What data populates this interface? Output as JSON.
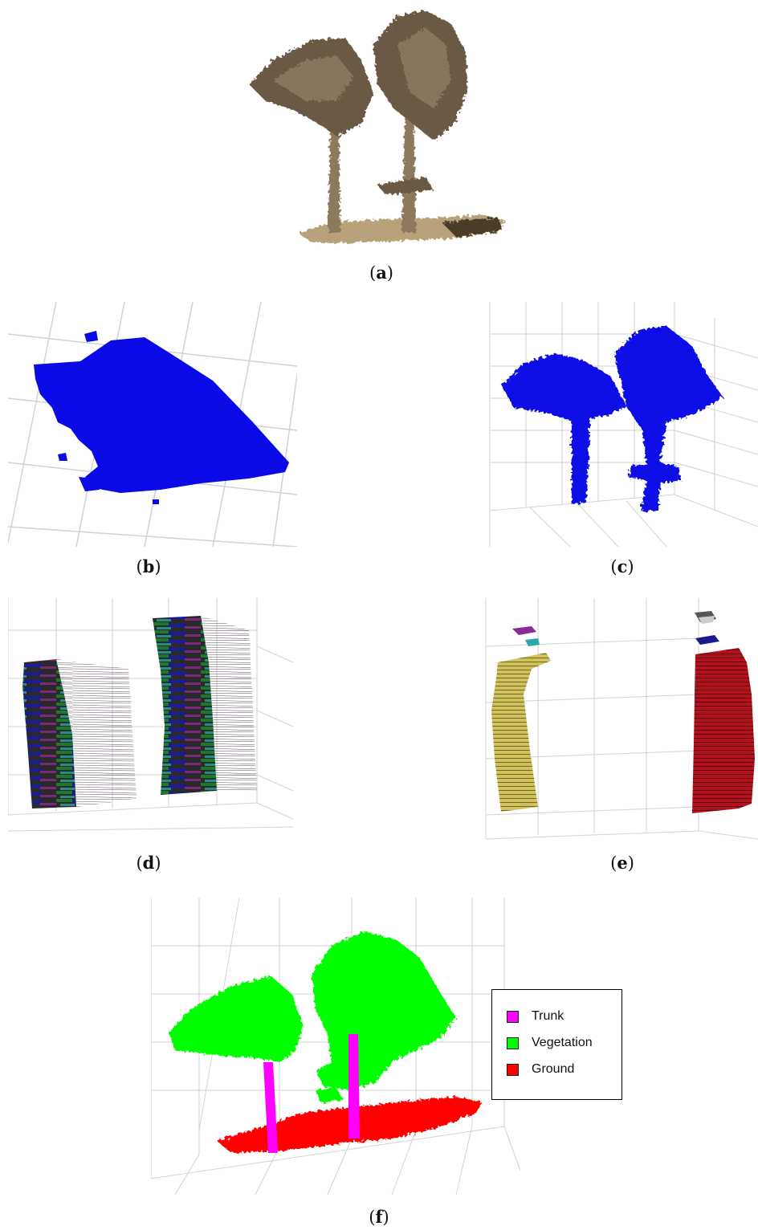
{
  "captions": {
    "a": "a",
    "b": "b",
    "c": "c",
    "d": "d",
    "e": "e",
    "f": "f"
  },
  "legend": [
    {
      "label": "Trunk",
      "color": "#ff00ff"
    },
    {
      "label": "Vegetation",
      "color": "#00ff00"
    },
    {
      "label": "Ground",
      "color": "#ff0000"
    }
  ],
  "colors": {
    "photo_canopy": "#6b5a44",
    "photo_trunk": "#8c7a5c",
    "photo_ground": "#b8a27a",
    "blue_points": "#0a0ae6",
    "grid": "#d2d2d2",
    "cluster_yellow": "#cfc25a",
    "cluster_red": "#b3121c"
  }
}
